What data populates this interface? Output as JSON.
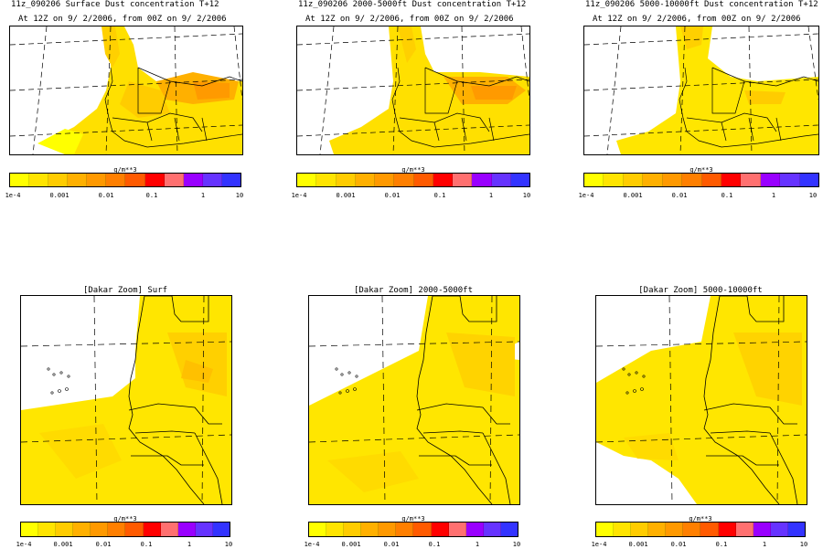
{
  "colors": {
    "dust_light": "#ffff00",
    "dust_mid": "#ffd700",
    "dust_orange": "#ffb000",
    "dust_dark": "#ff9a00"
  },
  "colorbar": {
    "unit": "g/m**3",
    "colors": [
      "#ffff00",
      "#ffe400",
      "#ffcc00",
      "#ffb000",
      "#ff9900",
      "#ff7f00",
      "#ff5a00",
      "#ff0000",
      "#ff7070",
      "#9900ff",
      "#6633ff",
      "#3333ff"
    ],
    "ticks": [
      "1e-4",
      "0.001",
      "0.01",
      "0.1",
      "1",
      "10"
    ]
  },
  "panels": [
    {
      "title": "11z_090206 Surface Dust concentration T+12",
      "subtitle": "At 12Z on 9/ 2/2006, from 00Z on 9/ 2/2006",
      "map_label": "Surf"
    },
    {
      "title": "11z_090206 2000-5000ft Dust concentration T+12",
      "subtitle": "At 12Z on 9/ 2/2006, from 00Z on 9/ 2/2006",
      "map_label": "2000-5000ft"
    },
    {
      "title": "11z_090206 5000-10000ft Dust concentration T+12",
      "subtitle": "At 12Z on 9/ 2/2006, from 00Z on 9/ 2/2006",
      "map_label": "5000-10000ft"
    }
  ],
  "zoom_panels": [
    {
      "title": "[Dakar Zoom] Surf"
    },
    {
      "title": "[Dakar Zoom] 2000-5000ft"
    },
    {
      "title": "[Dakar Zoom] 5000-10000ft"
    }
  ]
}
